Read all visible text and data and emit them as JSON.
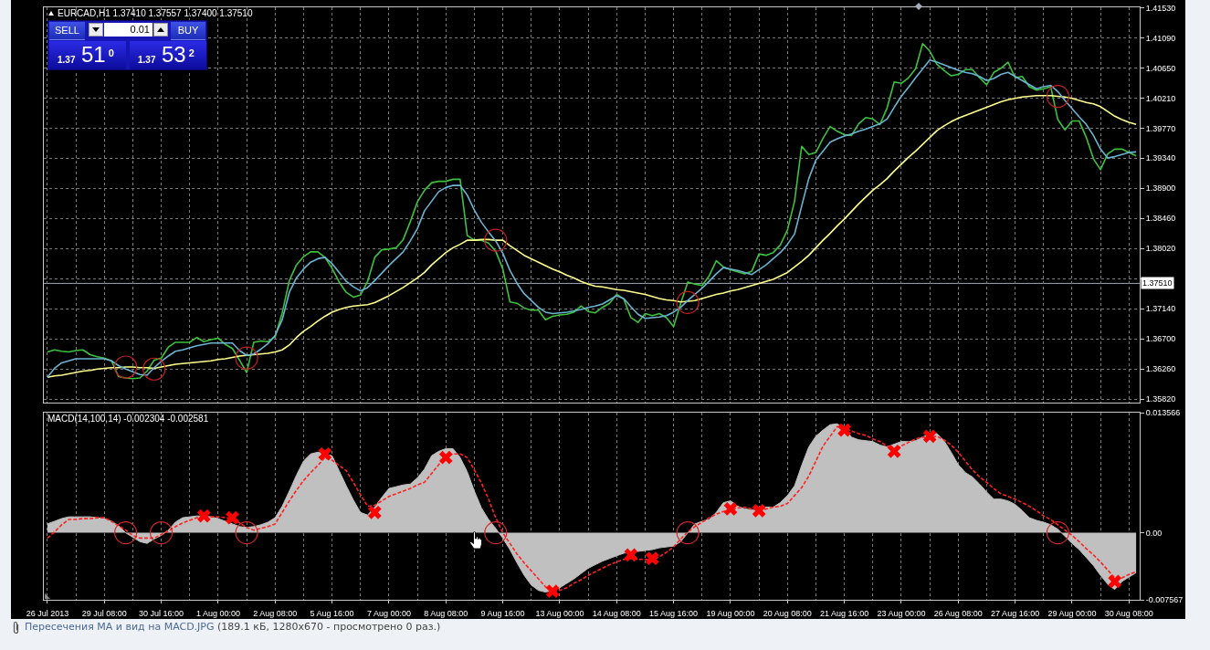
{
  "chart_data": [
    {
      "type": "line",
      "title": "EURCAD,H1 1.37410 1.37557 1.37400 1.37510",
      "categories": [
        null,
        null,
        null,
        null,
        null,
        null,
        null,
        null,
        null,
        null,
        null,
        null,
        null,
        null,
        null,
        null,
        null,
        null,
        null,
        null,
        null,
        null,
        null,
        null,
        null,
        null,
        null,
        null,
        null,
        null,
        null,
        null,
        null,
        null,
        null,
        null,
        null,
        null,
        null,
        null,
        null,
        null,
        null,
        null,
        null,
        null,
        null,
        null,
        null,
        null,
        null,
        null,
        null,
        null,
        null,
        null,
        null,
        null,
        null,
        null,
        null,
        null,
        null,
        null,
        null,
        null,
        null,
        null,
        null,
        null,
        null,
        null,
        null,
        null,
        null,
        null,
        null,
        null,
        null,
        null,
        null,
        null,
        null,
        null,
        null,
        null,
        null,
        null,
        null,
        null,
        null,
        null,
        null,
        null,
        null,
        null,
        null,
        null,
        null,
        null,
        null,
        null,
        null,
        null,
        null,
        null,
        null,
        null,
        null,
        null,
        null,
        null,
        null,
        null,
        null,
        null,
        null,
        null,
        null,
        null,
        null,
        null,
        null,
        null,
        null,
        null,
        null,
        null,
        null,
        null,
        null,
        null,
        null,
        null,
        null,
        null,
        null,
        null,
        null,
        null,
        null,
        null,
        null,
        null,
        null,
        null,
        null,
        null,
        null,
        null,
        null,
        null,
        null,
        null
      ],
      "ylim": [
        1.3577,
        1.4154
      ],
      "yticks": [
        {
          "value": 1.4153,
          "label": "1.41530"
        },
        {
          "value": 1.4109,
          "label": "1.41090"
        },
        {
          "value": 1.4065,
          "label": "1.40650"
        },
        {
          "value": 1.4021,
          "label": "1.40210"
        },
        {
          "value": 1.3977,
          "label": "1.39770"
        },
        {
          "value": 1.3934,
          "label": "1.39340"
        },
        {
          "value": 1.389,
          "label": "1.38900"
        },
        {
          "value": 1.3846,
          "label": "1.38460"
        },
        {
          "value": 1.3802,
          "label": "1.38020"
        },
        {
          "value": 1.3758,
          "label": null
        },
        {
          "value": 1.3714,
          "label": "1.37140"
        },
        {
          "value": 1.367,
          "label": "1.36700"
        },
        {
          "value": 1.3626,
          "label": "1.36260"
        },
        {
          "value": 1.3582,
          "label": "1.35820"
        }
      ],
      "grid": true,
      "ref_lines": [
        {
          "axis": "y",
          "value": 1.3751,
          "label": "1.37510",
          "color": "#9aa6b8"
        }
      ],
      "series": [
        {
          "color": "#3cc23c",
          "values": [
            1.3651,
            1.3654,
            1.3652,
            1.3651,
            1.3653,
            1.3654,
            1.3647,
            1.3644,
            1.3642,
            1.3638,
            1.3615,
            1.3613,
            1.3612,
            1.3613,
            1.3623,
            1.3639,
            1.3642,
            1.3658,
            1.3665,
            1.3665,
            1.3665,
            1.3672,
            1.3666,
            1.3669,
            1.3671,
            1.3662,
            1.3656,
            1.3639,
            1.3621,
            1.3665,
            1.3667,
            1.3666,
            1.3673,
            1.3708,
            1.3755,
            1.3778,
            1.379,
            1.3797,
            1.3797,
            1.3789,
            1.3773,
            1.3753,
            1.3738,
            1.3731,
            1.3734,
            1.3754,
            1.3789,
            1.38,
            1.3801,
            1.3803,
            1.3815,
            1.3841,
            1.387,
            1.3887,
            1.3898,
            1.39,
            1.39,
            1.3903,
            1.3903,
            1.3821,
            1.3814,
            1.3814,
            1.381,
            1.3798,
            1.3772,
            1.3724,
            1.3722,
            1.3715,
            1.3712,
            1.3712,
            1.3698,
            1.3703,
            1.3705,
            1.3706,
            1.3709,
            1.3718,
            1.371,
            1.3708,
            1.3716,
            1.3722,
            1.3735,
            1.3728,
            1.3701,
            1.3694,
            1.3707,
            1.3704,
            1.3707,
            1.3701,
            1.3688,
            1.3722,
            1.3753,
            1.375,
            1.3748,
            1.3762,
            1.3784,
            1.3775,
            1.3771,
            1.3768,
            1.3765,
            1.3769,
            1.3794,
            1.3792,
            1.3796,
            1.3807,
            1.3829,
            1.3871,
            1.3951,
            1.3939,
            1.3942,
            1.3963,
            1.398,
            1.3973,
            1.3968,
            1.3967,
            1.3984,
            1.3993,
            1.3991,
            1.3983,
            1.4007,
            1.4045,
            1.4043,
            1.4051,
            1.4064,
            1.4101,
            1.409,
            1.4071,
            1.4062,
            1.4054,
            1.4056,
            1.4063,
            1.4063,
            1.4051,
            1.4041,
            1.4059,
            1.4065,
            1.4074,
            1.4051,
            1.4053,
            1.4038,
            1.4033,
            1.4035,
            1.4038,
            1.399,
            1.3975,
            1.3988,
            1.3988,
            1.3964,
            1.3933,
            1.3917,
            1.394,
            1.3947,
            1.3947,
            1.3942,
            1.3937
          ]
        },
        {
          "color": "#ffff8c",
          "values": [
            1.3614,
            1.3616,
            1.3617,
            1.3619,
            1.3621,
            1.3623,
            1.3624,
            1.3626,
            1.3627,
            1.3628,
            1.3628,
            1.3629,
            1.3629,
            1.3628,
            1.3628,
            1.3627,
            1.3629,
            1.3631,
            1.3633,
            1.3634,
            1.3635,
            1.3636,
            1.3637,
            1.3638,
            1.364,
            1.3641,
            1.3643,
            1.3645,
            1.3646,
            1.3647,
            1.3648,
            1.3649,
            1.3651,
            1.3654,
            1.3661,
            1.3672,
            1.3681,
            1.3688,
            1.3696,
            1.3703,
            1.3709,
            1.3713,
            1.3716,
            1.3718,
            1.3719,
            1.372,
            1.3723,
            1.3728,
            1.3733,
            1.3739,
            1.3745,
            1.3752,
            1.3759,
            1.3767,
            1.3778,
            1.3787,
            1.3796,
            1.3803,
            1.3808,
            1.3814,
            1.3814,
            1.3815,
            1.3815,
            1.3814,
            1.3814,
            1.3806,
            1.3799,
            1.3792,
            1.3787,
            1.3782,
            1.3777,
            1.3772,
            1.3768,
            1.3763,
            1.3759,
            1.3754,
            1.375,
            1.3747,
            1.3746,
            1.3744,
            1.3742,
            1.3741,
            1.3739,
            1.3737,
            1.3735,
            1.3732,
            1.3729,
            1.3727,
            1.3726,
            1.3724,
            1.3725,
            1.3726,
            1.3729,
            1.3732,
            1.3735,
            1.3737,
            1.374,
            1.3742,
            1.3745,
            1.3748,
            1.3751,
            1.3754,
            1.3757,
            1.3762,
            1.3767,
            1.3775,
            1.3783,
            1.3792,
            1.3803,
            1.3814,
            1.3824,
            1.3835,
            1.3845,
            1.3856,
            1.3867,
            1.3877,
            1.3887,
            1.3895,
            1.3904,
            1.3915,
            1.3925,
            1.3935,
            1.3944,
            1.3954,
            1.3964,
            1.3974,
            1.3981,
            1.3987,
            1.3992,
            1.3996,
            1.4,
            1.4004,
            1.4008,
            1.4012,
            1.4016,
            1.4019,
            1.4021,
            1.4023,
            1.4024,
            1.4025,
            1.4025,
            1.4025,
            1.4024,
            1.4023,
            1.4021,
            1.4018,
            1.4015,
            1.4013,
            1.4009,
            1.4002,
            1.3995,
            1.399,
            1.3986,
            1.3983
          ]
        },
        {
          "color": "#6ab4d2",
          "values": [
            1.3614,
            1.3627,
            1.3635,
            1.3638,
            1.3641,
            1.3641,
            1.3641,
            1.3641,
            1.3641,
            1.3638,
            1.3631,
            1.3626,
            1.3622,
            1.3618,
            1.3617,
            1.3628,
            1.3637,
            1.3645,
            1.3652,
            1.3654,
            1.3657,
            1.366,
            1.3662,
            1.3664,
            1.3664,
            1.3664,
            1.3664,
            1.3653,
            1.3646,
            1.3648,
            1.3655,
            1.3663,
            1.3675,
            1.3698,
            1.3738,
            1.3759,
            1.3772,
            1.3782,
            1.3787,
            1.3789,
            1.378,
            1.3767,
            1.3754,
            1.3746,
            1.374,
            1.3745,
            1.3755,
            1.3766,
            1.3777,
            1.3787,
            1.3797,
            1.3813,
            1.3831,
            1.3857,
            1.3871,
            1.3885,
            1.3891,
            1.3894,
            1.3894,
            1.388,
            1.3858,
            1.384,
            1.3826,
            1.3813,
            1.3795,
            1.377,
            1.3751,
            1.3736,
            1.3726,
            1.3716,
            1.3709,
            1.3707,
            1.3708,
            1.3709,
            1.3711,
            1.3713,
            1.3716,
            1.3718,
            1.3721,
            1.3727,
            1.3733,
            1.3729,
            1.3717,
            1.3706,
            1.37,
            1.3701,
            1.3702,
            1.3704,
            1.3709,
            1.3716,
            1.3726,
            1.3735,
            1.3744,
            1.3754,
            1.3765,
            1.3774,
            1.3772,
            1.377,
            1.3767,
            1.3764,
            1.3771,
            1.3778,
            1.3787,
            1.3796,
            1.3808,
            1.3823,
            1.3864,
            1.3904,
            1.3931,
            1.3944,
            1.3957,
            1.3962,
            1.3966,
            1.3969,
            1.3973,
            1.3976,
            1.398,
            1.3984,
            1.3991,
            1.4008,
            1.4024,
            1.4037,
            1.4051,
            1.4064,
            1.4077,
            1.4074,
            1.407,
            1.4066,
            1.4062,
            1.4059,
            1.4057,
            1.4053,
            1.4047,
            1.405,
            1.4056,
            1.4059,
            1.4053,
            1.4047,
            1.4041,
            1.4035,
            1.4038,
            1.404,
            1.4031,
            1.4018,
            1.4006,
            1.3994,
            1.3983,
            1.3967,
            1.3947,
            1.3934,
            1.3936,
            1.3939,
            1.3942,
            1.3943
          ]
        },
        {
          "type": "scatter",
          "marker": "circle",
          "color": "#c81e1e",
          "values": [
            null,
            null,
            null,
            null,
            null,
            null,
            null,
            null,
            null,
            null,
            null,
            1.3629,
            null,
            null,
            null,
            1.3626,
            null,
            null,
            null,
            null,
            null,
            null,
            null,
            null,
            null,
            null,
            null,
            null,
            1.3642,
            null,
            null,
            null,
            null,
            null,
            null,
            null,
            null,
            null,
            null,
            null,
            null,
            null,
            null,
            null,
            null,
            null,
            null,
            null,
            null,
            null,
            null,
            null,
            null,
            null,
            null,
            null,
            null,
            null,
            null,
            null,
            null,
            null,
            null,
            1.3814,
            null,
            null,
            null,
            null,
            null,
            null,
            null,
            null,
            null,
            null,
            null,
            null,
            null,
            null,
            null,
            null,
            null,
            null,
            null,
            null,
            null,
            null,
            null,
            null,
            null,
            null,
            1.3723,
            null,
            null,
            null,
            null,
            null,
            null,
            null,
            null,
            null,
            null,
            null,
            null,
            null,
            null,
            null,
            null,
            null,
            null,
            null,
            null,
            null,
            null,
            null,
            null,
            null,
            null,
            null,
            null,
            null,
            null,
            null,
            null,
            null,
            null,
            null,
            null,
            null,
            null,
            null,
            null,
            null,
            null,
            null,
            null,
            null,
            null,
            null,
            null,
            null,
            null,
            null,
            1.4024,
            null,
            null,
            null,
            null,
            null,
            null,
            null,
            null,
            null,
            null,
            null
          ]
        }
      ]
    },
    {
      "type": "area",
      "title": "MACD(14,100,14) -0.002304 -0.002581",
      "categories": [
        "26 Jul 2013",
        null,
        null,
        null,
        null,
        null,
        null,
        null,
        "29 Jul 08:00",
        null,
        null,
        null,
        null,
        null,
        null,
        null,
        "30 Jul 16:00",
        null,
        null,
        null,
        null,
        null,
        null,
        null,
        "1 Aug 00:00",
        null,
        null,
        null,
        null,
        null,
        null,
        null,
        "2 Aug 08:00",
        null,
        null,
        null,
        null,
        null,
        null,
        null,
        "5 Aug 16:00",
        null,
        null,
        null,
        null,
        null,
        null,
        null,
        "7 Aug 00:00",
        null,
        null,
        null,
        null,
        null,
        null,
        null,
        "8 Aug 08:00",
        null,
        null,
        null,
        null,
        null,
        null,
        null,
        "9 Aug 16:00",
        null,
        null,
        null,
        null,
        null,
        null,
        null,
        "13 Aug 00:00",
        null,
        null,
        null,
        null,
        null,
        null,
        null,
        "14 Aug 08:00",
        null,
        null,
        null,
        null,
        null,
        null,
        null,
        "15 Aug 16:00",
        null,
        null,
        null,
        null,
        null,
        null,
        null,
        "19 Aug 00:00",
        null,
        null,
        null,
        null,
        null,
        null,
        null,
        "20 Aug 08:00",
        null,
        null,
        null,
        null,
        null,
        null,
        null,
        "21 Aug 16:00",
        null,
        null,
        null,
        null,
        null,
        null,
        null,
        "23 Aug 00:00",
        null,
        null,
        null,
        null,
        null,
        null,
        null,
        "26 Aug 08:00",
        null,
        null,
        null,
        null,
        null,
        null,
        null,
        "27 Aug 16:00",
        null,
        null,
        null,
        null,
        null,
        null,
        null,
        "29 Aug 00:00",
        null,
        null,
        null,
        null,
        null,
        null,
        null,
        "30 Aug 08:00",
        null
      ],
      "ylim": [
        -0.007567,
        0.013566
      ],
      "yticks": [
        0.013566,
        {
          "value": 0,
          "label": "0.00"
        },
        -0.007567
      ],
      "grid": "x",
      "series": [
        {
          "color": "#c0c0c0",
          "values": [
            0.001,
            0.0013,
            0.0016,
            0.0018,
            0.0018,
            0.0018,
            0.0018,
            0.0017,
            0.0016,
            0.0013,
            0.0008,
            0,
            -0.0005,
            -0.001,
            -0.0012,
            -0.0007,
            -0.0003,
            0.0003,
            0.0012,
            0.0017,
            0.0018,
            0.0019,
            0.0019,
            0.0018,
            0.0016,
            0.0013,
            0.001,
            0.0007,
            0.0006,
            0.0007,
            0.0009,
            0.0012,
            0.0017,
            0.003,
            0.0047,
            0.0065,
            0.0081,
            0.0089,
            0.0091,
            0.0089,
            0.0087,
            0.007,
            0.0053,
            0.0037,
            0.0023,
            0.002,
            0.0029,
            0.004,
            0.005,
            0.0052,
            0.0054,
            0.0055,
            0.0062,
            0.0072,
            0.0087,
            0.0092,
            0.0095,
            0.0095,
            0.0085,
            0.0069,
            0.0047,
            0.0028,
            0.0015,
            0.0005,
            -0.0006,
            -0.0019,
            -0.0034,
            -0.0048,
            -0.0059,
            -0.0065,
            -0.0067,
            -0.0065,
            -0.0062,
            -0.0057,
            -0.0052,
            -0.0046,
            -0.004,
            -0.0036,
            -0.0032,
            -0.0029,
            -0.0026,
            -0.0023,
            -0.0022,
            -0.0021,
            -0.002,
            -0.0019,
            -0.0017,
            -0.0016,
            -0.0015,
            -0.001,
            0,
            0.001,
            0.0013,
            0.0015,
            0.0023,
            0.0034,
            0.0036,
            0.003,
            0.0027,
            0.0026,
            0.0027,
            0.0029,
            0.0029,
            0.0034,
            0.0042,
            0.0053,
            0.0076,
            0.0097,
            0.0109,
            0.0116,
            0.0122,
            0.0123,
            0.0117,
            0.0108,
            0.0105,
            0.0104,
            0.0103,
            0.0099,
            0.0097,
            0.01,
            0.0103,
            0.0103,
            0.0104,
            0.0108,
            0.0112,
            0.0112,
            0.0104,
            0.0091,
            0.0077,
            0.0068,
            0.0063,
            0.0055,
            0.0046,
            0.0038,
            0.0038,
            0.0036,
            0.0032,
            0.0025,
            0.0017,
            0.0014,
            0.0012,
            0.0009,
            0.0004,
            -0.0004,
            -0.0012,
            -0.0019,
            -0.0028,
            -0.0037,
            -0.0048,
            -0.0058,
            -0.0064,
            -0.0055,
            -0.005,
            -0.0045
          ]
        },
        {
          "type": "line",
          "line_style": "dashed",
          "color": "#ff2020",
          "values": [
            -0.0006,
            0.0001,
            0.0009,
            0.0015,
            0.0015,
            0.0016,
            0.0016,
            0.0017,
            0.0017,
            0.0013,
            0.0008,
            0.0003,
            -0.0003,
            -0.0006,
            -0.0006,
            -0.0006,
            -0.0002,
            0.0002,
            0.0007,
            0.0011,
            0.0014,
            0.0017,
            0.0019,
            0.0018,
            0.0018,
            0.0017,
            0.0016,
            0.0011,
            0.0006,
            0.0003,
            0.0005,
            0.0007,
            0.001,
            0.0023,
            0.0036,
            0.0048,
            0.0059,
            0.0068,
            0.0076,
            0.0085,
            0.0082,
            0.0076,
            0.007,
            0.0057,
            0.0043,
            0.003,
            0.0031,
            0.0036,
            0.0041,
            0.0044,
            0.0047,
            0.005,
            0.0054,
            0.0057,
            0.0067,
            0.0077,
            0.0086,
            0.0089,
            0.0089,
            0.0085,
            0.0071,
            0.0056,
            0.0038,
            0.0017,
            0,
            -0.0012,
            -0.0024,
            -0.0034,
            -0.0043,
            -0.0052,
            -0.0061,
            -0.0066,
            -0.0065,
            -0.0062,
            -0.0057,
            -0.0053,
            -0.0048,
            -0.0044,
            -0.004,
            -0.0036,
            -0.0033,
            -0.003,
            -0.0029,
            -0.003,
            -0.003,
            -0.0031,
            -0.0027,
            -0.0022,
            -0.0016,
            -0.0007,
            0.0001,
            0.0007,
            0.0012,
            0.0017,
            0.0021,
            0.0024,
            0.0026,
            0.0028,
            0.0029,
            0.0027,
            0.0025,
            0.0027,
            0.0029,
            0.003,
            0.0033,
            0.0042,
            0.0051,
            0.0064,
            0.0081,
            0.0098,
            0.0109,
            0.012,
            0.0118,
            0.0115,
            0.0112,
            0.011,
            0.0106,
            0.0103,
            0.0098,
            0.0094,
            0.0098,
            0.0102,
            0.0106,
            0.0108,
            0.0108,
            0.0109,
            0.0105,
            0.0099,
            0.0091,
            0.0081,
            0.0071,
            0.0063,
            0.0057,
            0.005,
            0.0044,
            0.0041,
            0.0038,
            0.0034,
            0.003,
            0.0025,
            0.0019,
            0.0015,
            0.0009,
            0.0003,
            -0.0003,
            -0.001,
            -0.0018,
            -0.0025,
            -0.0033,
            -0.0042,
            -0.0051,
            -0.0051,
            -0.0047,
            -0.0044
          ]
        },
        {
          "type": "scatter",
          "marker": "circle",
          "color": "#d22828",
          "values": [
            null,
            null,
            null,
            null,
            null,
            null,
            null,
            null,
            null,
            null,
            null,
            0,
            null,
            null,
            null,
            null,
            0,
            null,
            null,
            null,
            null,
            null,
            null,
            null,
            null,
            null,
            null,
            null,
            0,
            null,
            null,
            null,
            null,
            null,
            null,
            null,
            null,
            null,
            null,
            null,
            null,
            null,
            null,
            null,
            null,
            null,
            null,
            null,
            null,
            null,
            null,
            null,
            null,
            null,
            null,
            null,
            null,
            null,
            null,
            null,
            null,
            null,
            null,
            0,
            null,
            null,
            null,
            null,
            null,
            null,
            null,
            null,
            null,
            null,
            null,
            null,
            null,
            null,
            null,
            null,
            null,
            null,
            null,
            null,
            null,
            null,
            null,
            null,
            null,
            null,
            0,
            null,
            null,
            null,
            null,
            null,
            null,
            null,
            null,
            null,
            null,
            null,
            null,
            null,
            null,
            null,
            null,
            null,
            null,
            null,
            null,
            null,
            null,
            null,
            null,
            null,
            null,
            null,
            null,
            null,
            null,
            null,
            null,
            null,
            null,
            null,
            null,
            null,
            null,
            null,
            null,
            null,
            null,
            null,
            null,
            null,
            null,
            null,
            null,
            null,
            null,
            null,
            0,
            null,
            null,
            null,
            null,
            null,
            null,
            null,
            null,
            null,
            null,
            null
          ]
        },
        {
          "type": "scatter",
          "marker": "cross",
          "color": "#ff0000",
          "values": [
            null,
            null,
            null,
            null,
            null,
            null,
            null,
            null,
            null,
            null,
            null,
            null,
            null,
            null,
            null,
            null,
            null,
            null,
            null,
            null,
            null,
            null,
            0.0019,
            null,
            null,
            null,
            0.0017,
            null,
            null,
            null,
            null,
            null,
            null,
            null,
            null,
            null,
            null,
            null,
            null,
            0.0089,
            null,
            null,
            null,
            null,
            null,
            null,
            0.0023,
            null,
            null,
            null,
            null,
            null,
            null,
            null,
            null,
            null,
            0.0085,
            null,
            null,
            null,
            null,
            null,
            null,
            null,
            null,
            null,
            null,
            null,
            null,
            null,
            null,
            -0.0066,
            null,
            null,
            null,
            null,
            null,
            null,
            null,
            null,
            null,
            null,
            -0.0025,
            null,
            null,
            -0.0029,
            null,
            null,
            null,
            null,
            null,
            null,
            null,
            null,
            null,
            null,
            0.0027,
            null,
            null,
            null,
            0.0025,
            null,
            null,
            null,
            null,
            null,
            null,
            null,
            null,
            null,
            null,
            null,
            0.0116,
            null,
            null,
            null,
            null,
            null,
            null,
            0.0092,
            null,
            null,
            null,
            null,
            0.0109,
            null,
            null,
            null,
            null,
            null,
            null,
            null,
            null,
            null,
            null,
            null,
            null,
            null,
            null,
            null,
            null,
            null,
            null,
            null,
            null,
            null,
            null,
            null,
            null,
            null,
            -0.0055,
            null,
            null,
            null
          ]
        }
      ],
      "annotations": [
        "Пересечения МА и вид на MACD.JPG",
        "(189.1 кБ, 1280x670 - просмотрено 0 раз.)"
      ]
    },
    {
      "type": "other",
      "annotations": [
        "SELL",
        "0.01",
        "BUY",
        "1.37",
        "51$^{0}$",
        "1.37",
        "53$^{2}$"
      ]
    }
  ]
}
